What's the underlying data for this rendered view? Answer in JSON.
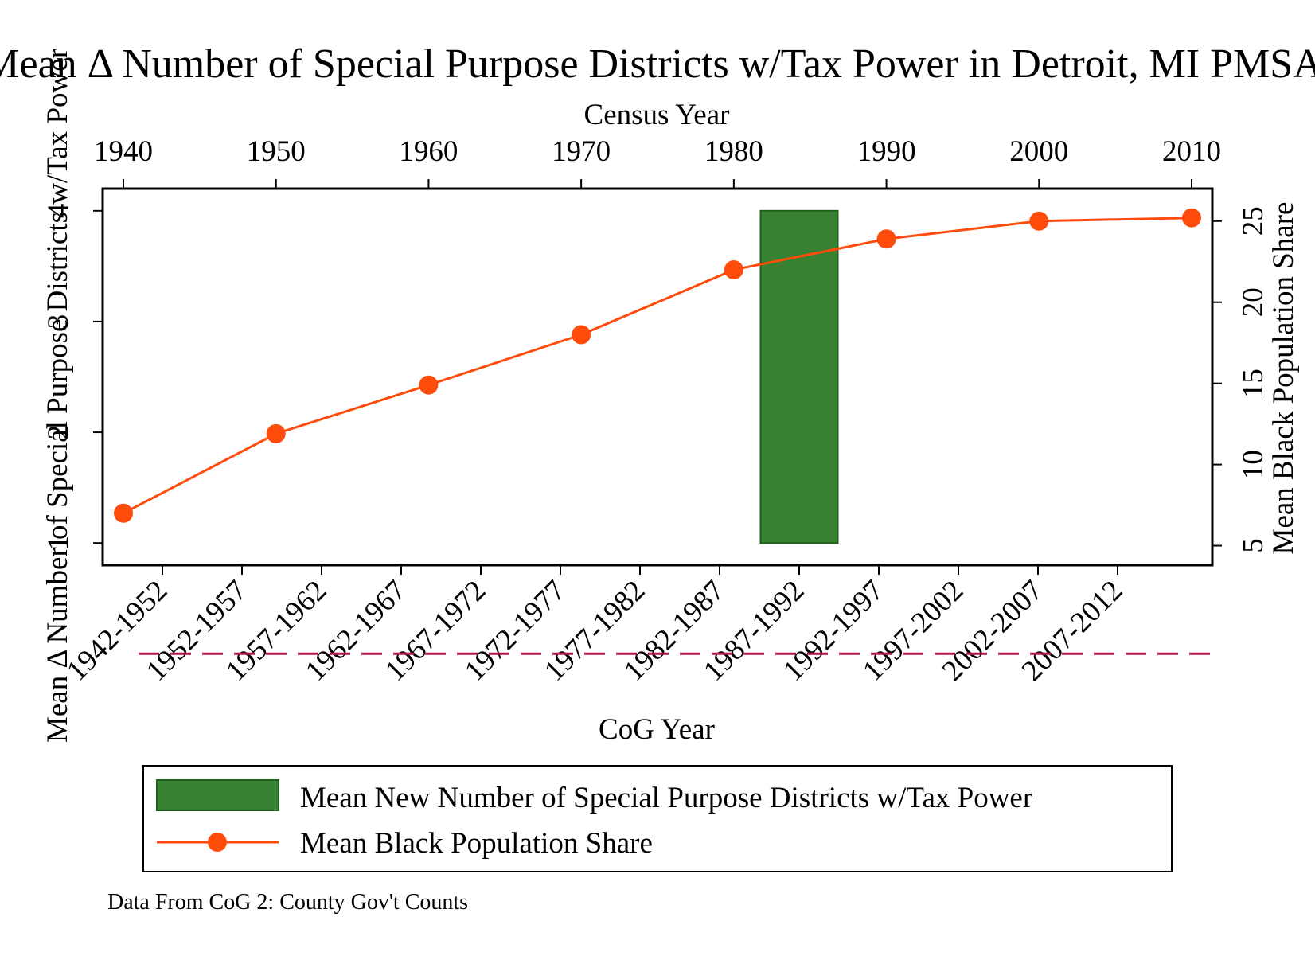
{
  "chart_data": {
    "type": "bar+line",
    "title": "Mean Δ Number of Special Purpose Districts w/Tax Power in Detroit, MI PMSA",
    "left_axis_label": "Mean Δ Number of Special Purpose Districts w/Tax Power",
    "right_axis_label": "Mean Black Population Share",
    "top_axis_label": "Census Year",
    "bottom_axis_label": "CoG Year",
    "note": "Data From CoG 2: County Gov't Counts",
    "census_years": [
      1940,
      1950,
      1960,
      1970,
      1980,
      1990,
      2000,
      2010
    ],
    "cog_periods": [
      "1942-1952",
      "1952-1957",
      "1957-1962",
      "1962-1967",
      "1967-1972",
      "1972-1977",
      "1977-1982",
      "1982-1987",
      "1987-1992",
      "1992-1997",
      "1997-2002",
      "2002-2007",
      "2007-2012"
    ],
    "left_ticks": [
      1,
      2,
      3,
      4
    ],
    "right_ticks": [
      5,
      10,
      15,
      20,
      25
    ],
    "left_ylim": [
      0.8,
      4.2
    ],
    "right_ylim": [
      3.8,
      27.0
    ],
    "bars": {
      "name": "Mean New Number of Special Purpose Districts w/Tax Power",
      "color": "#378132",
      "border": "#1e6019",
      "categories": [
        "1987-1992"
      ],
      "values": [
        4
      ]
    },
    "line": {
      "name": "Mean Black Population Share",
      "color": "#ff4c0c",
      "x": [
        1940,
        1950,
        1960,
        1970,
        1980,
        1990,
        2000,
        2010
      ],
      "y": [
        7.0,
        11.9,
        14.9,
        18.0,
        22.0,
        23.9,
        25.0,
        25.2
      ]
    },
    "reference_line": {
      "left_axis_value": 0,
      "color": "#b3124e",
      "style": "dashed"
    }
  },
  "legend": {
    "bar_label": "Mean New Number of Special Purpose Districts w/Tax Power",
    "line_label": "Mean Black Population Share"
  }
}
